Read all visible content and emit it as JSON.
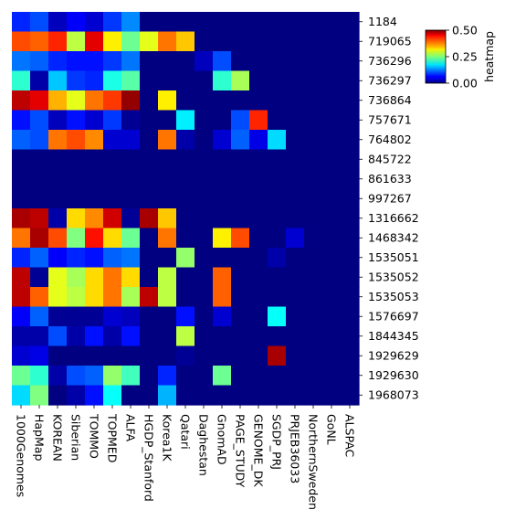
{
  "chart_data": {
    "type": "heatmap",
    "colormap": "jet",
    "colorbar": {
      "label": "heatmap",
      "min": 0.0,
      "max": 0.5,
      "ticks": [
        "0.00",
        "0.25",
        "0.50"
      ]
    },
    "x_labels": [
      "1000Genomes",
      "HapMap",
      "KOREAN",
      "Siberian",
      "TOMMO",
      "TOPMED",
      "ALFA",
      "HGDP_Stanford",
      "Korea1K",
      "Qatari",
      "Daghestan",
      "GnomAD",
      "PAGE_STUDY",
      "GENOME_DK",
      "SGDP_PRJ",
      "PRJEB36033",
      "NorthernSweden",
      "GoNL",
      "ALSPAC"
    ],
    "y_labels": [
      "1184",
      "719065",
      "736296",
      "736297",
      "736864",
      "757671",
      "764802",
      "845722",
      "861633",
      "997267",
      "1316662",
      "1468342",
      "1535051",
      "1535052",
      "1535053",
      "1576697",
      "1844345",
      "1929629",
      "1929630",
      "1968073"
    ],
    "values": [
      [
        0.08,
        0.1,
        0.03,
        0.06,
        0.04,
        0.09,
        0.13,
        0,
        0,
        0,
        0,
        0,
        0,
        0,
        0,
        0,
        0,
        0,
        0
      ],
      [
        0.4,
        0.39,
        0.42,
        0.28,
        0.45,
        0.32,
        0.24,
        0.3,
        0.38,
        0.34,
        0,
        0,
        0,
        0,
        0,
        0,
        0,
        0,
        0
      ],
      [
        0.12,
        0.11,
        0.08,
        0.07,
        0.07,
        0.09,
        0.12,
        0,
        0,
        0,
        0.03,
        0.1,
        0,
        0,
        0,
        0,
        0,
        0,
        0
      ],
      [
        0.21,
        0.02,
        0.16,
        0.09,
        0.08,
        0.2,
        0.23,
        0,
        0,
        0,
        0,
        0.21,
        0.27,
        0,
        0,
        0,
        0,
        0,
        0
      ],
      [
        0.47,
        0.45,
        0.35,
        0.3,
        0.38,
        0.41,
        0.49,
        0,
        0.32,
        0,
        0,
        0,
        0,
        0,
        0,
        0,
        0,
        0,
        0
      ],
      [
        0.07,
        0.1,
        0.03,
        0.07,
        0.04,
        0.09,
        0.01,
        0,
        0,
        0.18,
        0,
        0,
        0.1,
        0.42,
        0,
        0,
        0,
        0,
        0
      ],
      [
        0.11,
        0.1,
        0.38,
        0.4,
        0.37,
        0.04,
        0.04,
        0,
        0.38,
        0.02,
        0,
        0.04,
        0.11,
        0.05,
        0.17,
        0,
        0,
        0,
        0
      ],
      [
        0,
        0,
        0,
        0,
        0,
        0,
        0,
        0,
        0,
        0,
        0,
        0,
        0,
        0,
        0,
        0,
        0,
        0,
        0
      ],
      [
        0,
        0,
        0,
        0,
        0,
        0,
        0,
        0,
        0,
        0,
        0,
        0,
        0,
        0,
        0,
        0,
        0,
        0,
        0
      ],
      [
        0,
        0,
        0,
        0,
        0,
        0,
        0,
        0,
        0,
        0,
        0,
        0,
        0,
        0,
        0,
        0,
        0,
        0,
        0
      ],
      [
        0.48,
        0.47,
        0.02,
        0.33,
        0.37,
        0.46,
        0.01,
        0.48,
        0.34,
        0,
        0,
        0,
        0,
        0,
        0,
        0,
        0,
        0,
        0
      ],
      [
        0.38,
        0.48,
        0.4,
        0.25,
        0.43,
        0.33,
        0.24,
        0,
        0.38,
        0,
        0,
        0.32,
        0.4,
        0,
        0,
        0.04,
        0,
        0,
        0
      ],
      [
        0.08,
        0.11,
        0.06,
        0.08,
        0.07,
        0.11,
        0.12,
        0,
        0,
        0.26,
        0,
        0,
        0,
        0,
        0.02,
        0,
        0,
        0,
        0
      ],
      [
        0.47,
        0.01,
        0.3,
        0.27,
        0.33,
        0.38,
        0.33,
        0,
        0.28,
        0,
        0,
        0.39,
        0,
        0,
        0,
        0,
        0,
        0,
        0
      ],
      [
        0.47,
        0.39,
        0.3,
        0.28,
        0.33,
        0.38,
        0.27,
        0.47,
        0.28,
        0,
        0,
        0.39,
        0,
        0,
        0,
        0,
        0,
        0,
        0
      ],
      [
        0.06,
        0.11,
        0.01,
        0.01,
        0.01,
        0.04,
        0.03,
        0,
        0,
        0.07,
        0,
        0.04,
        0,
        0,
        0.19,
        0,
        0,
        0,
        0
      ],
      [
        0.02,
        0.02,
        0.1,
        0.02,
        0.07,
        0.02,
        0.07,
        0,
        0,
        0.28,
        0,
        0,
        0,
        0,
        0,
        0,
        0,
        0,
        0
      ],
      [
        0.04,
        0.05,
        0,
        0,
        0,
        0,
        0,
        0,
        0,
        0.01,
        0,
        0,
        0,
        0,
        0.48,
        0,
        0,
        0,
        0
      ],
      [
        0.24,
        0.21,
        0.02,
        0.1,
        0.11,
        0.26,
        0.22,
        0,
        0.08,
        0,
        0,
        0.24,
        0,
        0,
        0,
        0,
        0,
        0,
        0
      ],
      [
        0.17,
        0.25,
        0,
        0.02,
        0.07,
        0.19,
        0,
        0,
        0.15,
        0,
        0,
        0,
        0,
        0,
        0,
        0,
        0,
        0,
        0
      ]
    ]
  }
}
